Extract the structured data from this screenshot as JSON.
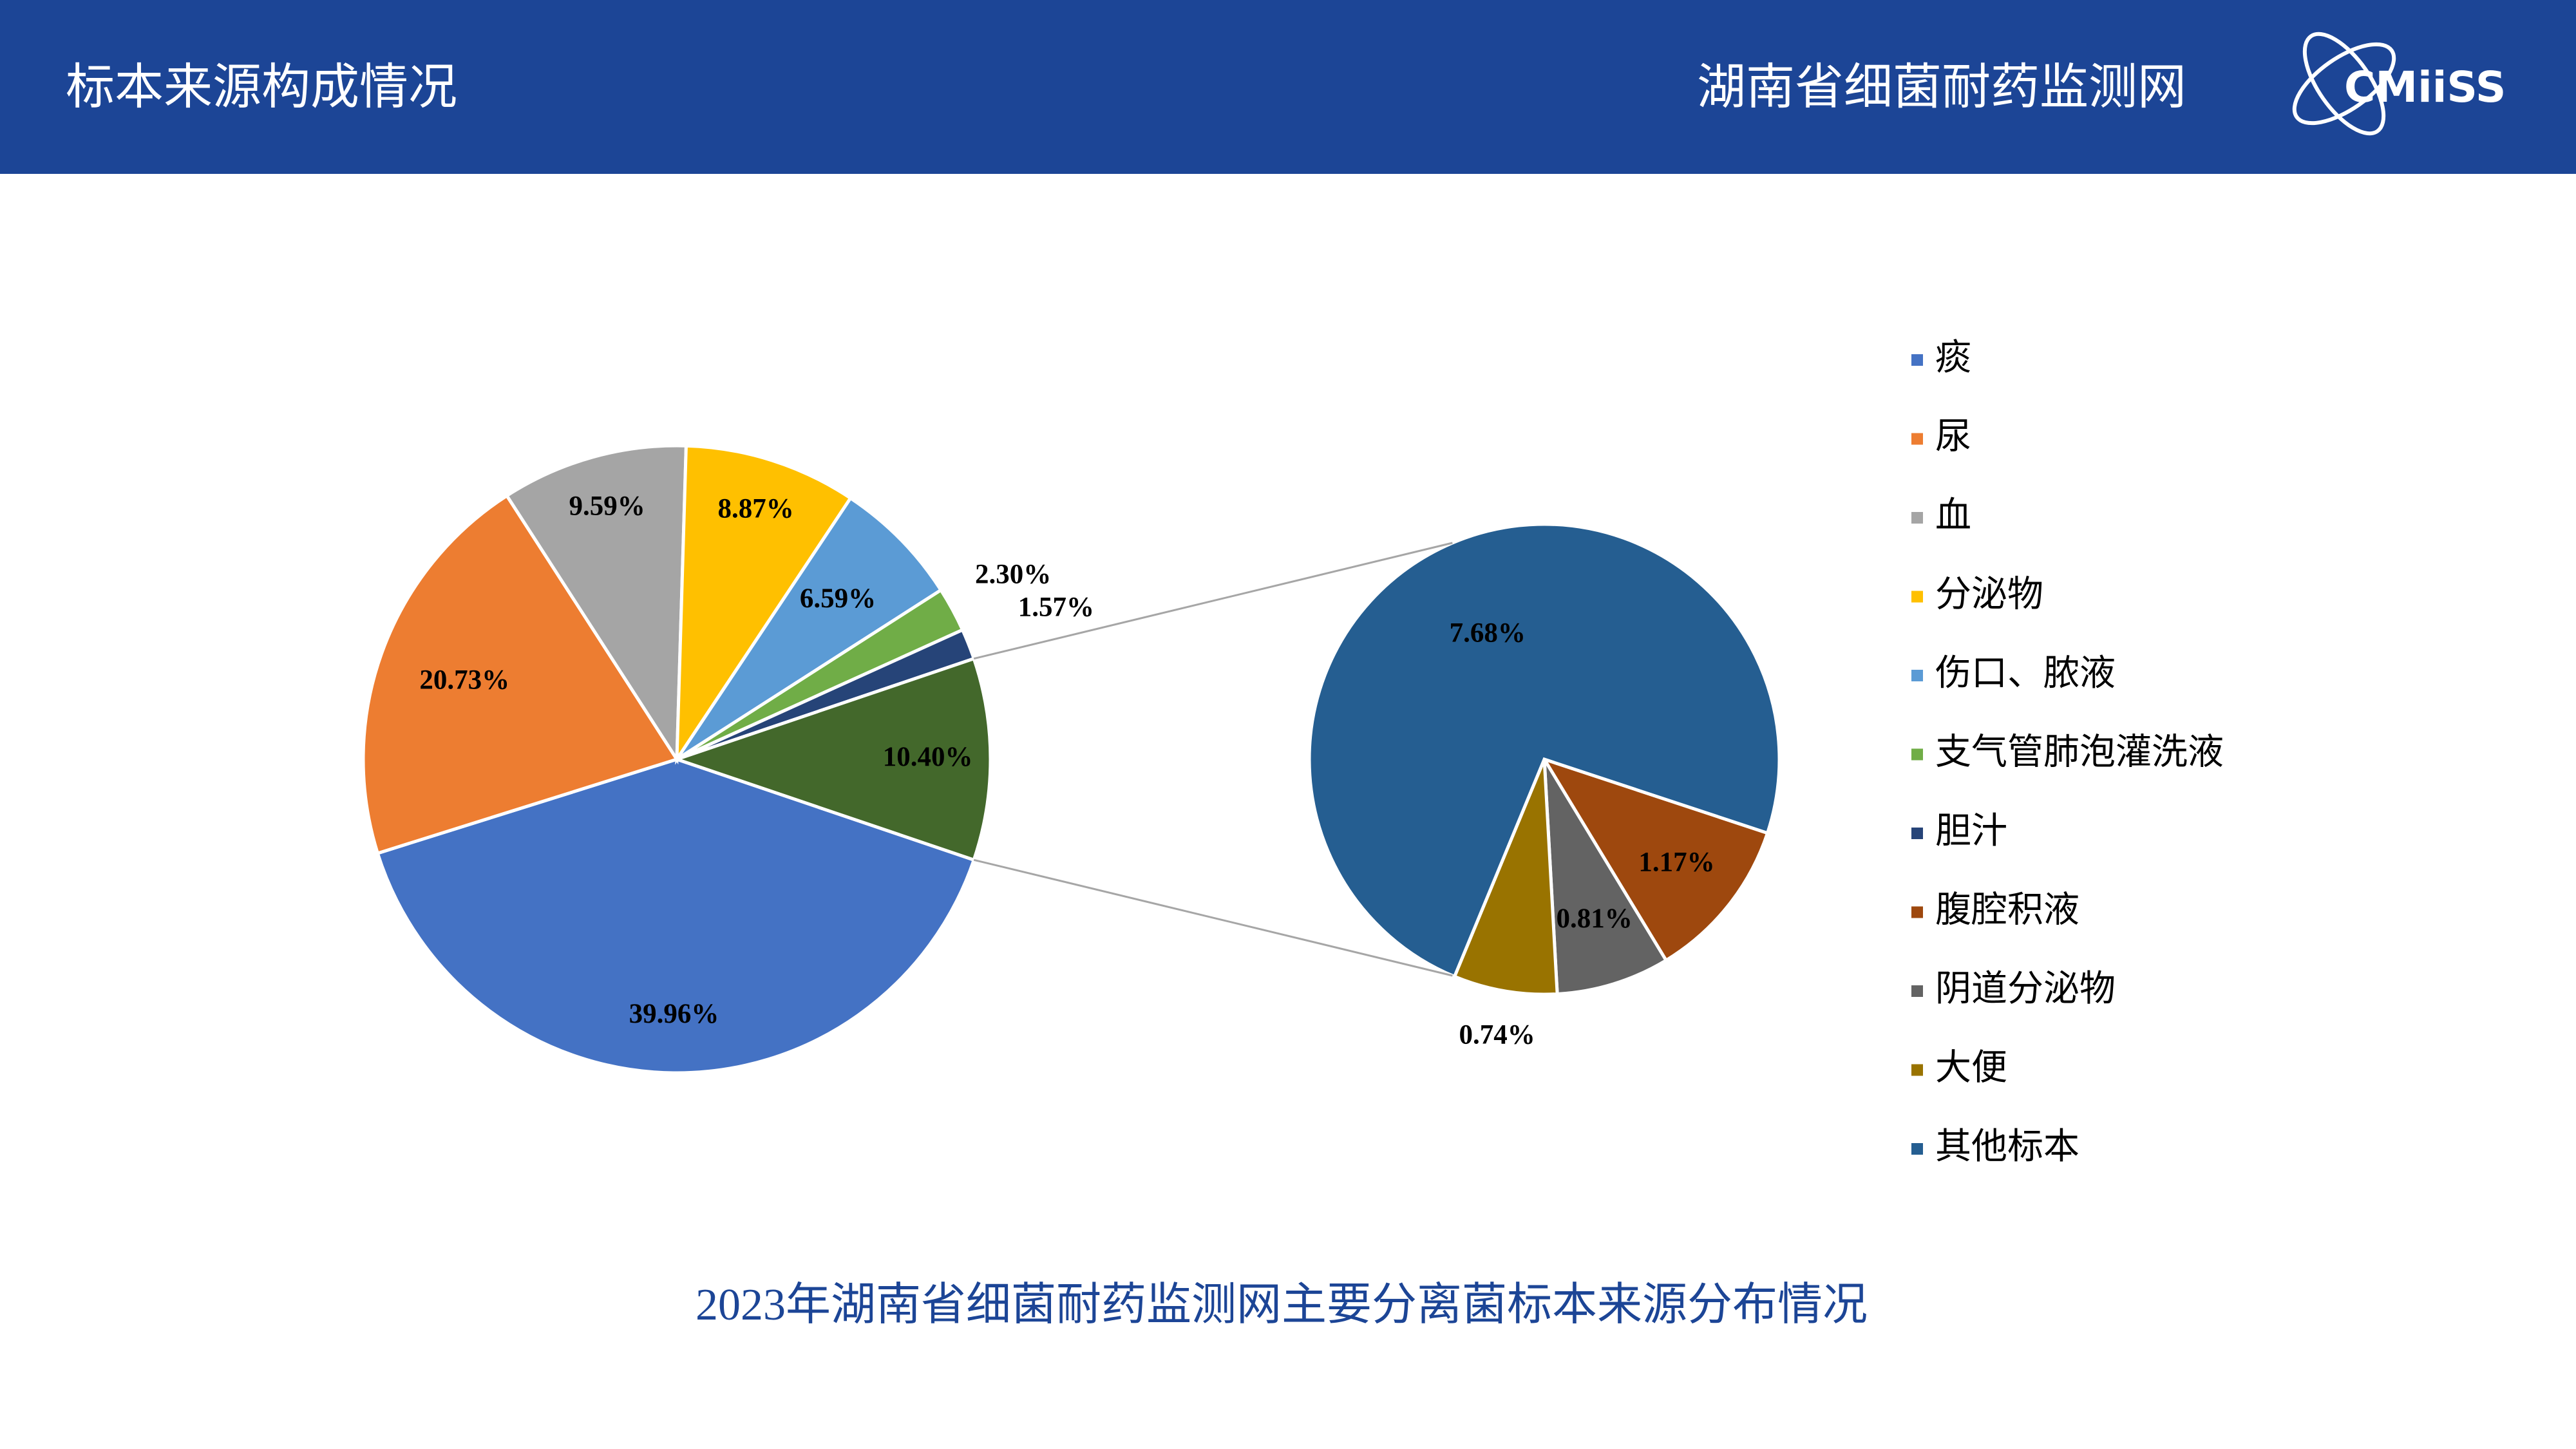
{
  "header": {
    "title": "标本来源构成情况",
    "organization": "湖南省细菌耐药监测网",
    "logo": "CMiiSS"
  },
  "chart_data": {
    "type": "pie_of_pie",
    "title": "2023年湖南省细菌耐药监测网主要分离菌标本来源分布情况",
    "main": {
      "categories": [
        "痰",
        "尿",
        "血",
        "分泌物",
        "伤口、脓液",
        "支气管肺泡灌洗液",
        "胆汁"
      ],
      "values": [
        39.96,
        20.73,
        9.59,
        8.87,
        6.59,
        2.3,
        1.57
      ],
      "value_labels": [
        "39.96%",
        "20.73%",
        "9.59%",
        "8.87%",
        "6.59%",
        "2.30%",
        "1.57%"
      ],
      "colors": [
        "#4472c4",
        "#ed7d31",
        "#a5a5a5",
        "#ffc000",
        "#5b9bd5",
        "#70ad47",
        "#264478"
      ]
    },
    "other": {
      "value": 10.4,
      "value_label": "10.40%",
      "color": "#43682b"
    },
    "secondary": {
      "categories": [
        "腹腔积液",
        "阴道分泌物",
        "大便",
        "其他标本"
      ],
      "values": [
        1.17,
        0.81,
        0.74,
        7.68
      ],
      "value_labels": [
        "1.17%",
        "0.81%",
        "0.74%",
        "7.68%"
      ],
      "colors": [
        "#9e480e",
        "#636363",
        "#997300",
        "#255e91"
      ]
    },
    "legend": "right"
  }
}
